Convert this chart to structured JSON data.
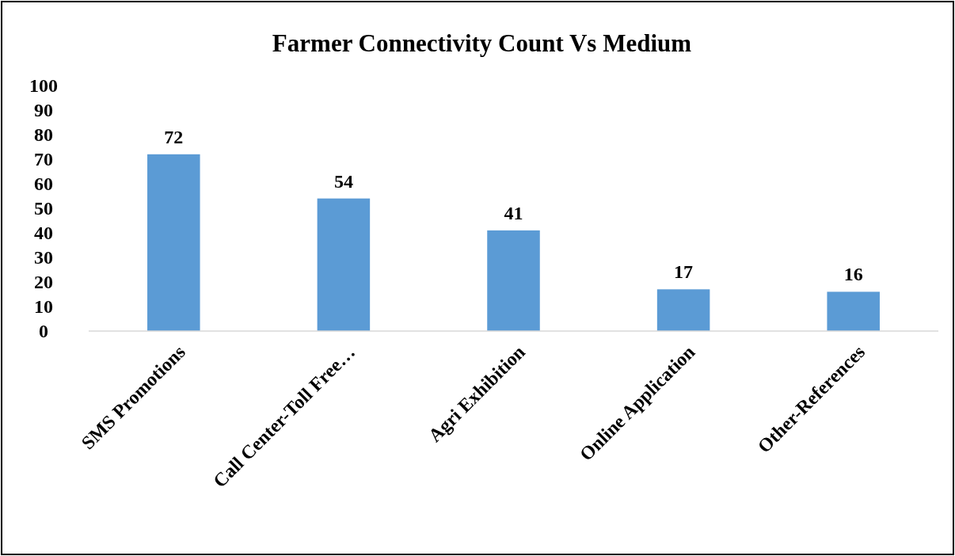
{
  "chart_data": {
    "type": "bar",
    "title": "Farmer Connectivity Count Vs Medium",
    "categories": [
      "SMS Promotions",
      "Call Center-Toll Free…",
      "Agri Exhibition",
      "Online Application",
      "Other-References"
    ],
    "values": [
      72,
      54,
      41,
      17,
      16
    ],
    "color": "#5b9bd5",
    "ylim": [
      0,
      100
    ],
    "yticks": [
      0,
      10,
      20,
      30,
      40,
      50,
      60,
      70,
      80,
      90,
      100
    ],
    "grid": false,
    "data_labels": true
  }
}
